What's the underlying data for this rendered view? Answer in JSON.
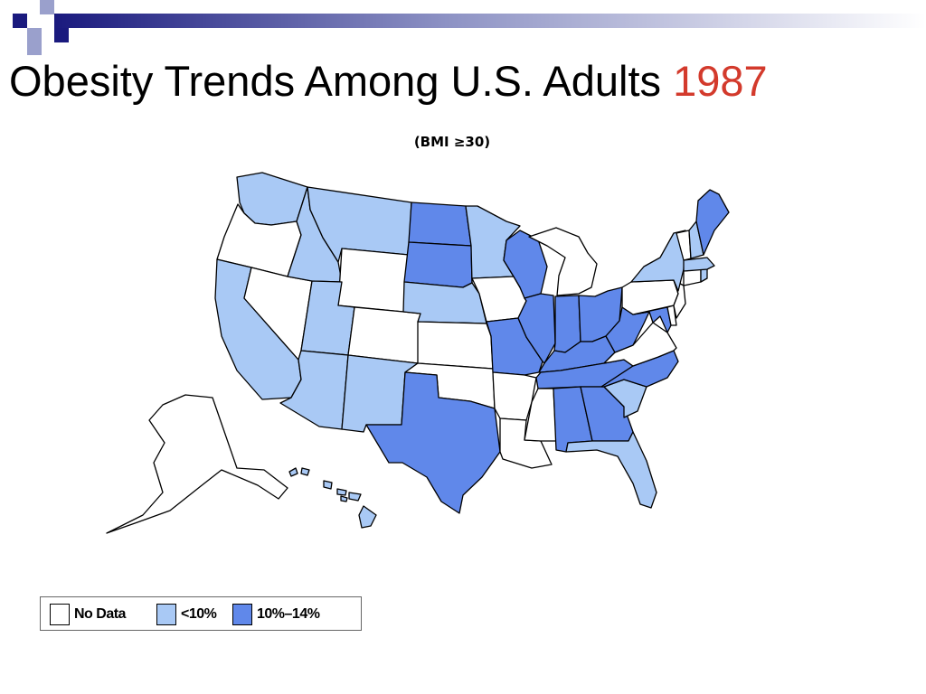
{
  "slide": {
    "title": "Obesity Trends Among U.S. Adults",
    "year": "1987",
    "subtitle": "(BMI ≥30)"
  },
  "colors": {
    "no_data": "#ffffff",
    "lt10": "#a9c9f5",
    "p10_14": "#6088ea",
    "title_year": "#d33a2c",
    "deco_dark": "#1a1a7e",
    "deco_light": "#9aa0cc"
  },
  "legend": [
    {
      "label": "No Data",
      "category": "no_data"
    },
    {
      "label": "<10%",
      "category": "lt10"
    },
    {
      "label": "10%–14%",
      "category": "p10_14"
    }
  ],
  "states": {
    "WA": "lt10",
    "OR": "no_data",
    "CA": "lt10",
    "NV": "no_data",
    "ID": "lt10",
    "MT": "lt10",
    "WY": "no_data",
    "UT": "lt10",
    "AZ": "lt10",
    "CO": "no_data",
    "NM": "lt10",
    "ND": "p10_14",
    "SD": "p10_14",
    "NE": "lt10",
    "KS": "no_data",
    "OK": "no_data",
    "TX": "p10_14",
    "MN": "lt10",
    "IA": "no_data",
    "MO": "p10_14",
    "AR": "no_data",
    "LA": "no_data",
    "WI": "p10_14",
    "IL": "p10_14",
    "MI": "no_data",
    "IN": "p10_14",
    "OH": "p10_14",
    "KY": "p10_14",
    "TN": "p10_14",
    "MS": "no_data",
    "AL": "p10_14",
    "GA": "p10_14",
    "FL": "lt10",
    "SC": "lt10",
    "NC": "p10_14",
    "VA": "no_data",
    "WV": "p10_14",
    "MD": "p10_14",
    "DE": "no_data",
    "PA": "no_data",
    "NJ": "no_data",
    "NY": "lt10",
    "CT": "no_data",
    "RI": "lt10",
    "MA": "lt10",
    "VT": "no_data",
    "NH": "lt10",
    "ME": "p10_14",
    "AK": "no_data",
    "HI": "lt10"
  }
}
